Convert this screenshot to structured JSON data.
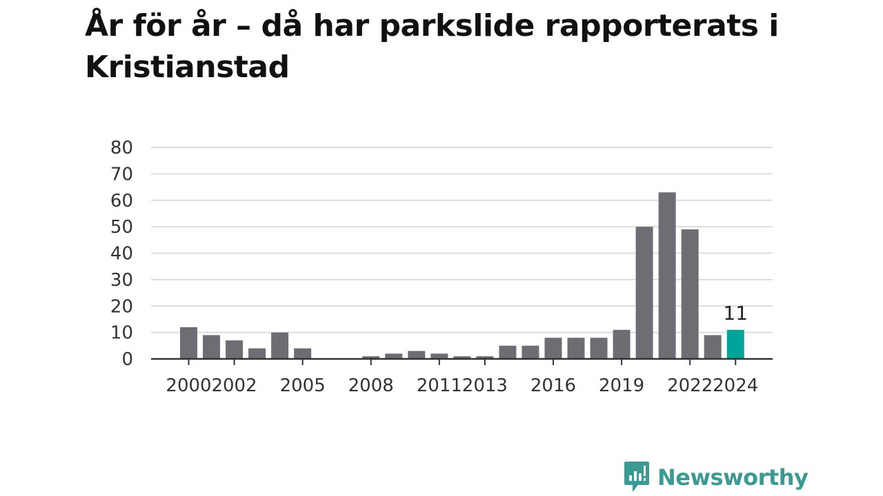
{
  "brand": {
    "name": "Newsworthy",
    "color": "#3a9a94"
  },
  "chart_data": {
    "type": "bar",
    "title": "År för år – då har parkslide rapporterats i Kristianstad",
    "xlabel": "",
    "ylabel": "",
    "ylim": [
      0,
      80
    ],
    "yticks": [
      0,
      10,
      20,
      30,
      40,
      50,
      60,
      70,
      80
    ],
    "grid": true,
    "x": [
      2000,
      2001,
      2002,
      2003,
      2004,
      2005,
      2006,
      2007,
      2008,
      2009,
      2010,
      2011,
      2012,
      2013,
      2014,
      2015,
      2016,
      2017,
      2018,
      2019,
      2020,
      2021,
      2022,
      2023,
      2024
    ],
    "values": [
      12,
      9,
      7,
      4,
      10,
      4,
      0,
      0,
      1,
      2,
      3,
      2,
      1,
      1,
      5,
      5,
      8,
      8,
      8,
      11,
      50,
      63,
      49,
      9,
      11
    ],
    "xtick_labels": [
      {
        "year": 2000,
        "label": "2000"
      },
      {
        "year": 2002,
        "label": "2002"
      },
      {
        "year": 2005,
        "label": "2005"
      },
      {
        "year": 2008,
        "label": "2008"
      },
      {
        "year": 2011,
        "label": "2011"
      },
      {
        "year": 2013,
        "label": "2013"
      },
      {
        "year": 2016,
        "label": "2016"
      },
      {
        "year": 2019,
        "label": "2019"
      },
      {
        "year": 2022,
        "label": "2022"
      },
      {
        "year": 2024,
        "label": "2024"
      }
    ],
    "highlight": {
      "year": 2024,
      "label": "11"
    },
    "colors": {
      "bar": "#6e6d73",
      "highlight": "#00a59a",
      "grid": "#dddddd",
      "axis": "#333333"
    }
  }
}
